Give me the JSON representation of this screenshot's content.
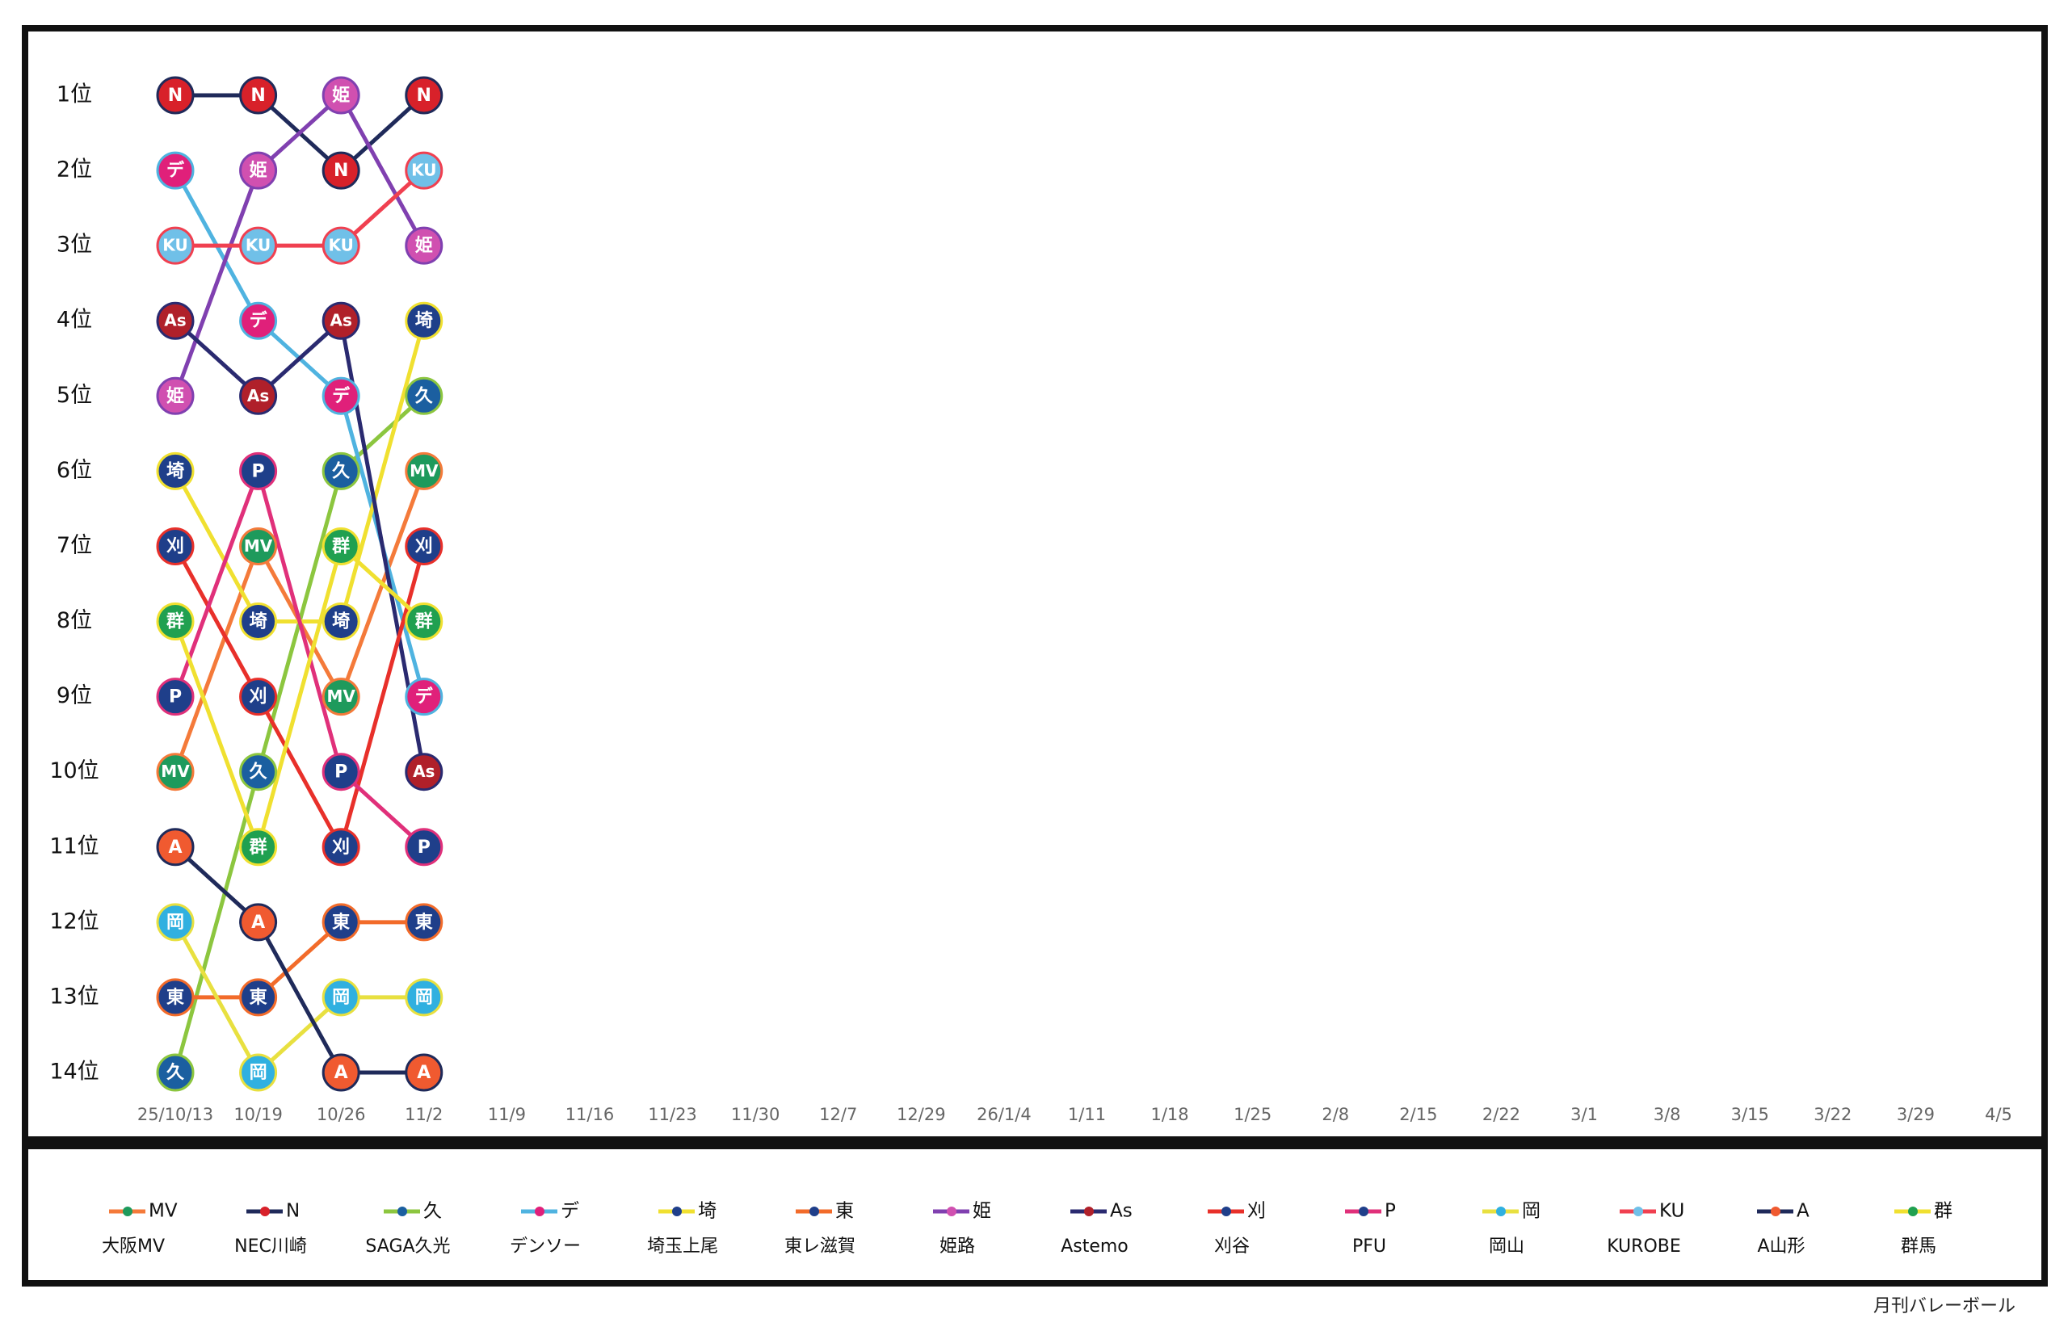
{
  "chart_data": {
    "type": "bump",
    "categories": [
      "25/10/13",
      "10/19",
      "10/26",
      "11/2",
      "11/9",
      "11/16",
      "11/23",
      "11/30",
      "12/7",
      "12/29",
      "26/1/4",
      "1/11",
      "1/18",
      "1/25",
      "2/8",
      "2/15",
      "2/22",
      "3/1",
      "3/8",
      "3/15",
      "3/22",
      "3/29",
      "4/5"
    ],
    "ylim": [
      1,
      14
    ],
    "y_reversed": true,
    "yticks": [
      {
        "value": 1,
        "label": "1位"
      },
      {
        "value": 2,
        "label": "2位"
      },
      {
        "value": 3,
        "label": "3位"
      },
      {
        "value": 4,
        "label": "4位"
      },
      {
        "value": 5,
        "label": "5位"
      },
      {
        "value": 6,
        "label": "6位"
      },
      {
        "value": 7,
        "label": "7位"
      },
      {
        "value": 8,
        "label": "8位"
      },
      {
        "value": 9,
        "label": "9位"
      },
      {
        "value": 10,
        "label": "10位"
      },
      {
        "value": 11,
        "label": "11位"
      },
      {
        "value": 12,
        "label": "12位"
      },
      {
        "value": 13,
        "label": "13位"
      },
      {
        "value": 14,
        "label": "14位"
      }
    ],
    "series": [
      {
        "name": "MV",
        "label": "大阪MV",
        "color": "#f47a3a",
        "marker_color": "#1e9a5c",
        "values": [
          10,
          7,
          9,
          6,
          null,
          null,
          null,
          null,
          null,
          null,
          null,
          null,
          null,
          null,
          null,
          null,
          null,
          null,
          null,
          null,
          null,
          null,
          null
        ]
      },
      {
        "name": "N",
        "label": "NEC川崎",
        "color": "#1f2a5a",
        "marker_color": "#d8212a",
        "values": [
          1,
          1,
          2,
          1,
          null,
          null,
          null,
          null,
          null,
          null,
          null,
          null,
          null,
          null,
          null,
          null,
          null,
          null,
          null,
          null,
          null,
          null,
          null
        ]
      },
      {
        "name": "久",
        "label": "SAGA久光",
        "color": "#8cc63f",
        "marker_color": "#1b5fa0",
        "values": [
          14,
          10,
          6,
          5,
          null,
          null,
          null,
          null,
          null,
          null,
          null,
          null,
          null,
          null,
          null,
          null,
          null,
          null,
          null,
          null,
          null,
          null,
          null
        ]
      },
      {
        "name": "デ",
        "label": "デンソー",
        "color": "#4fb3e0",
        "marker_color": "#e0207a",
        "values": [
          2,
          4,
          5,
          9,
          null,
          null,
          null,
          null,
          null,
          null,
          null,
          null,
          null,
          null,
          null,
          null,
          null,
          null,
          null,
          null,
          null,
          null,
          null
        ]
      },
      {
        "name": "埼",
        "label": "埼玉上尾",
        "color": "#f0e030",
        "marker_color": "#1f3f8a",
        "values": [
          6,
          8,
          8,
          4,
          null,
          null,
          null,
          null,
          null,
          null,
          null,
          null,
          null,
          null,
          null,
          null,
          null,
          null,
          null,
          null,
          null,
          null,
          null
        ]
      },
      {
        "name": "東",
        "label": "東レ滋賀",
        "color": "#f26b2a",
        "marker_color": "#1f3f8a",
        "values": [
          13,
          13,
          12,
          12,
          null,
          null,
          null,
          null,
          null,
          null,
          null,
          null,
          null,
          null,
          null,
          null,
          null,
          null,
          null,
          null,
          null,
          null,
          null
        ]
      },
      {
        "name": "姫",
        "label": "姫路",
        "color": "#8040b0",
        "marker_color": "#d050b0",
        "values": [
          5,
          2,
          1,
          3,
          null,
          null,
          null,
          null,
          null,
          null,
          null,
          null,
          null,
          null,
          null,
          null,
          null,
          null,
          null,
          null,
          null,
          null,
          null
        ]
      },
      {
        "name": "As",
        "label": "Astemo",
        "color": "#2a2a70",
        "marker_color": "#b0202a",
        "values": [
          4,
          5,
          4,
          10,
          null,
          null,
          null,
          null,
          null,
          null,
          null,
          null,
          null,
          null,
          null,
          null,
          null,
          null,
          null,
          null,
          null,
          null,
          null
        ]
      },
      {
        "name": "刈",
        "label": "刈谷",
        "color": "#e8302a",
        "marker_color": "#1f3f8a",
        "values": [
          7,
          9,
          11,
          7,
          null,
          null,
          null,
          null,
          null,
          null,
          null,
          null,
          null,
          null,
          null,
          null,
          null,
          null,
          null,
          null,
          null,
          null,
          null
        ]
      },
      {
        "name": "P",
        "label": "PFU",
        "color": "#e0307a",
        "marker_color": "#1f3f8a",
        "values": [
          9,
          6,
          10,
          11,
          null,
          null,
          null,
          null,
          null,
          null,
          null,
          null,
          null,
          null,
          null,
          null,
          null,
          null,
          null,
          null,
          null,
          null,
          null
        ]
      },
      {
        "name": "岡",
        "label": "岡山",
        "color": "#e8e040",
        "marker_color": "#30b0e0",
        "values": [
          12,
          14,
          13,
          13,
          null,
          null,
          null,
          null,
          null,
          null,
          null,
          null,
          null,
          null,
          null,
          null,
          null,
          null,
          null,
          null,
          null,
          null,
          null
        ]
      },
      {
        "name": "KU",
        "label": "KUROBE",
        "color": "#f04050",
        "marker_color": "#70c0e8",
        "values": [
          3,
          3,
          3,
          2,
          null,
          null,
          null,
          null,
          null,
          null,
          null,
          null,
          null,
          null,
          null,
          null,
          null,
          null,
          null,
          null,
          null,
          null,
          null
        ]
      },
      {
        "name": "A",
        "label": "A山形",
        "color": "#1f2a5a",
        "marker_color": "#f05a30",
        "values": [
          11,
          12,
          14,
          14,
          null,
          null,
          null,
          null,
          null,
          null,
          null,
          null,
          null,
          null,
          null,
          null,
          null,
          null,
          null,
          null,
          null,
          null,
          null
        ]
      },
      {
        "name": "群",
        "label": "群馬",
        "color": "#f0e030",
        "marker_color": "#20a050",
        "values": [
          8,
          11,
          7,
          8,
          null,
          null,
          null,
          null,
          null,
          null,
          null,
          null,
          null,
          null,
          null,
          null,
          null,
          null,
          null,
          null,
          null,
          null,
          null
        ]
      }
    ],
    "credit": "月刊バレーボール"
  }
}
